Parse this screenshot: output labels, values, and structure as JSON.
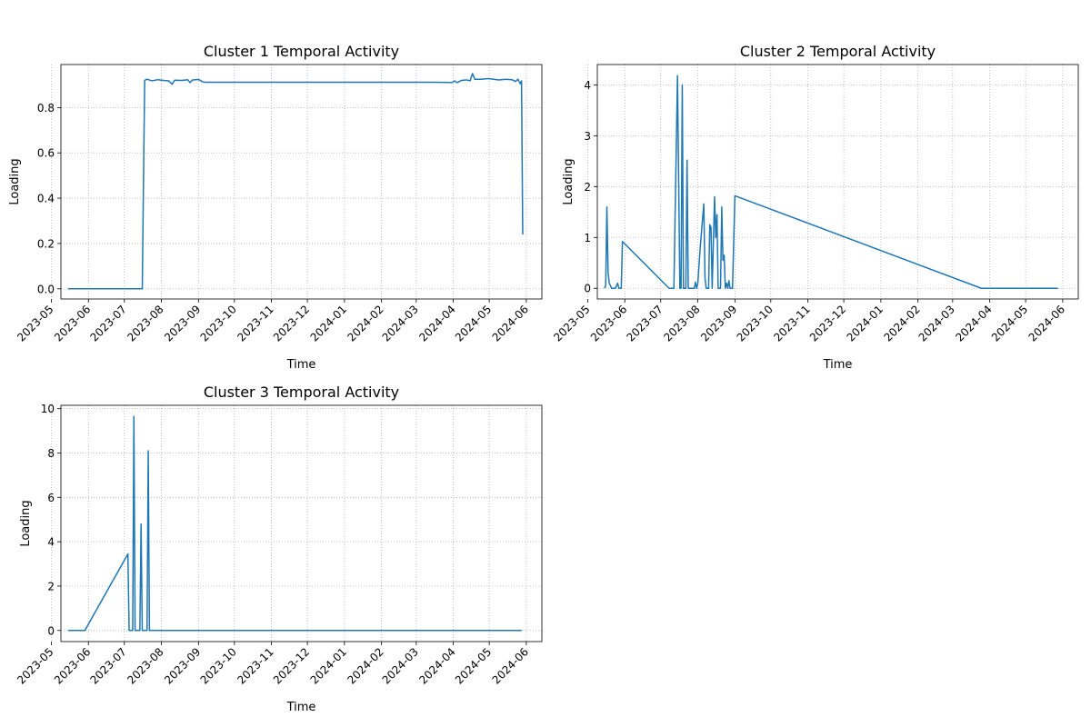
{
  "suptitle": "",
  "chart_data": [
    {
      "type": "line",
      "title": "Cluster 1 Temporal Activity",
      "xlabel": "Time",
      "ylabel": "Loading",
      "xlim": [
        "2023-05-09",
        "2024-06-14"
      ],
      "ylim": [
        -0.045,
        0.99
      ],
      "yticks": [
        0.0,
        0.2,
        0.4,
        0.6,
        0.8
      ],
      "ytick_labels": [
        "0.0",
        "0.2",
        "0.4",
        "0.6",
        "0.8"
      ],
      "grid": true,
      "series": [
        {
          "color": "#1f77b4",
          "points": [
            [
              "2023-05-15",
              0.0
            ],
            [
              "2023-07-01",
              0.0
            ],
            [
              "2023-07-16",
              0.0
            ],
            [
              "2023-07-18",
              0.92
            ],
            [
              "2023-07-20",
              0.925
            ],
            [
              "2023-07-24",
              0.918
            ],
            [
              "2023-07-29",
              0.923
            ],
            [
              "2023-08-03",
              0.92
            ],
            [
              "2023-08-07",
              0.918
            ],
            [
              "2023-08-10",
              0.903
            ],
            [
              "2023-08-12",
              0.921
            ],
            [
              "2023-08-18",
              0.92
            ],
            [
              "2023-08-23",
              0.923
            ],
            [
              "2023-08-25",
              0.91
            ],
            [
              "2023-08-27",
              0.922
            ],
            [
              "2023-09-01",
              0.924
            ],
            [
              "2023-09-04",
              0.915
            ],
            [
              "2023-09-06",
              0.912
            ],
            [
              "2023-10-01",
              0.912
            ],
            [
              "2023-12-01",
              0.912
            ],
            [
              "2024-02-01",
              0.912
            ],
            [
              "2024-03-15",
              0.912
            ],
            [
              "2024-03-31",
              0.911
            ],
            [
              "2024-04-02",
              0.918
            ],
            [
              "2024-04-04",
              0.91
            ],
            [
              "2024-04-08",
              0.92
            ],
            [
              "2024-04-12",
              0.922
            ],
            [
              "2024-04-15",
              0.918
            ],
            [
              "2024-04-17",
              0.95
            ],
            [
              "2024-04-19",
              0.925
            ],
            [
              "2024-04-24",
              0.925
            ],
            [
              "2024-04-30",
              0.928
            ],
            [
              "2024-05-05",
              0.925
            ],
            [
              "2024-05-09",
              0.922
            ],
            [
              "2024-05-15",
              0.925
            ],
            [
              "2024-05-20",
              0.923
            ],
            [
              "2024-05-23",
              0.915
            ],
            [
              "2024-05-25",
              0.925
            ],
            [
              "2024-05-27",
              0.905
            ],
            [
              "2024-05-28",
              0.918
            ],
            [
              "2024-05-29",
              0.24
            ]
          ]
        }
      ]
    },
    {
      "type": "line",
      "title": "Cluster 2 Temporal Activity",
      "xlabel": "Time",
      "ylabel": "Loading",
      "xlim": [
        "2023-05-09",
        "2024-06-14"
      ],
      "ylim": [
        -0.21,
        4.4
      ],
      "yticks": [
        0,
        1,
        2,
        3,
        4
      ],
      "ytick_labels": [
        "0",
        "1",
        "2",
        "3",
        "4"
      ],
      "grid": true,
      "series": [
        {
          "color": "#1f77b4",
          "points": [
            [
              "2023-05-15",
              0.0
            ],
            [
              "2023-05-16",
              0.05
            ],
            [
              "2023-05-17",
              1.6
            ],
            [
              "2023-05-18",
              0.3
            ],
            [
              "2023-05-19",
              0.1
            ],
            [
              "2023-05-21",
              0.0
            ],
            [
              "2023-05-24",
              0.0
            ],
            [
              "2023-05-26",
              0.1
            ],
            [
              "2023-05-27",
              0.0
            ],
            [
              "2023-05-29",
              0.0
            ],
            [
              "2023-05-30",
              0.92
            ],
            [
              "2023-07-08",
              0.0
            ],
            [
              "2023-07-12",
              0.0
            ],
            [
              "2023-07-15",
              4.18
            ],
            [
              "2023-07-17",
              0.0
            ],
            [
              "2023-07-18",
              0.0
            ],
            [
              "2023-07-19",
              4.0
            ],
            [
              "2023-07-20",
              0.0
            ],
            [
              "2023-07-22",
              0.0
            ],
            [
              "2023-07-23",
              2.52
            ],
            [
              "2023-07-24",
              0.0
            ],
            [
              "2023-07-29",
              0.0
            ],
            [
              "2023-07-30",
              0.12
            ],
            [
              "2023-07-31",
              0.0
            ],
            [
              "2023-08-01",
              0.1
            ],
            [
              "2023-08-03",
              0.8
            ],
            [
              "2023-08-06",
              1.66
            ],
            [
              "2023-08-07",
              0.2
            ],
            [
              "2023-08-08",
              0.0
            ],
            [
              "2023-08-10",
              0.0
            ],
            [
              "2023-08-11",
              1.25
            ],
            [
              "2023-08-12",
              1.2
            ],
            [
              "2023-08-13",
              0.0
            ],
            [
              "2023-08-15",
              1.8
            ],
            [
              "2023-08-16",
              1.0
            ],
            [
              "2023-08-17",
              1.45
            ],
            [
              "2023-08-18",
              0.0
            ],
            [
              "2023-08-20",
              0.0
            ],
            [
              "2023-08-21",
              1.6
            ],
            [
              "2023-08-22",
              0.55
            ],
            [
              "2023-08-23",
              0.65
            ],
            [
              "2023-08-24",
              0.0
            ],
            [
              "2023-08-25",
              0.1
            ],
            [
              "2023-08-26",
              0.0
            ],
            [
              "2023-08-27",
              0.15
            ],
            [
              "2023-08-28",
              0.0
            ],
            [
              "2023-08-30",
              0.0
            ],
            [
              "2023-09-01",
              1.82
            ],
            [
              "2024-03-25",
              0.0
            ],
            [
              "2024-05-28",
              0.0
            ]
          ]
        }
      ]
    },
    {
      "type": "line",
      "title": "Cluster 3 Temporal Activity",
      "xlabel": "Time",
      "ylabel": "Loading",
      "xlim": [
        "2023-05-09",
        "2024-06-14"
      ],
      "ylim": [
        -0.5,
        10.15
      ],
      "yticks": [
        0,
        2,
        4,
        6,
        8,
        10
      ],
      "ytick_labels": [
        "0",
        "2",
        "4",
        "6",
        "8",
        "10"
      ],
      "grid": true,
      "series": [
        {
          "color": "#1f77b4",
          "points": [
            [
              "2023-05-15",
              0.0
            ],
            [
              "2023-05-29",
              0.0
            ],
            [
              "2023-07-04",
              3.45
            ],
            [
              "2023-07-05",
              0.0
            ],
            [
              "2023-07-08",
              0.0
            ],
            [
              "2023-07-09",
              9.65
            ],
            [
              "2023-07-10",
              0.0
            ],
            [
              "2023-07-14",
              0.0
            ],
            [
              "2023-07-15",
              4.8
            ],
            [
              "2023-07-16",
              0.0
            ],
            [
              "2023-07-20",
              0.0
            ],
            [
              "2023-07-21",
              8.1
            ],
            [
              "2023-07-22",
              0.0
            ],
            [
              "2024-05-28",
              0.0
            ]
          ]
        }
      ]
    }
  ],
  "x_tick_labels": [
    "2023-05",
    "2023-06",
    "2023-07",
    "2023-08",
    "2023-09",
    "2023-10",
    "2023-11",
    "2023-12",
    "2024-01",
    "2024-02",
    "2024-03",
    "2024-04",
    "2024-05",
    "2024-06"
  ],
  "x_tick_dates": [
    "2023-05-01",
    "2023-06-01",
    "2023-07-01",
    "2023-08-01",
    "2023-09-01",
    "2023-10-01",
    "2023-11-01",
    "2023-12-01",
    "2024-01-01",
    "2024-02-01",
    "2024-03-01",
    "2024-04-01",
    "2024-05-01",
    "2024-06-01"
  ]
}
